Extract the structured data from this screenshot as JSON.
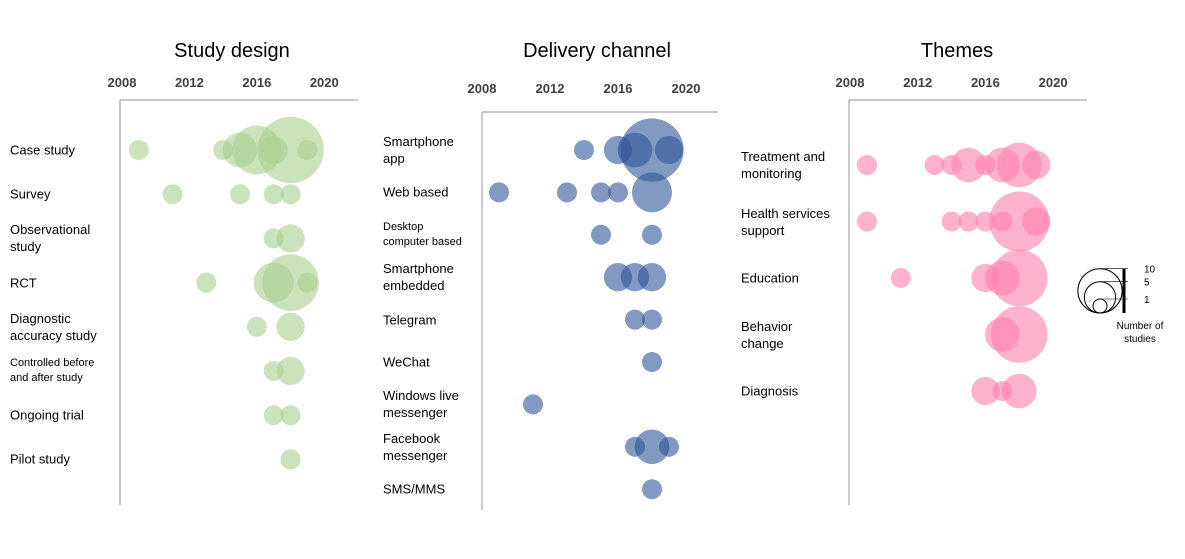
{
  "chart_data": [
    {
      "type": "bubble",
      "title": "Study design",
      "categories": [
        "Case study",
        "Survey",
        "Observational study",
        "RCT",
        "Diagnostic accuracy study",
        "Controlled before and after study",
        "Ongoing trial",
        "Pilot study"
      ],
      "xlim": [
        2008,
        2022
      ],
      "xticks": [
        2008,
        2012,
        2016,
        2020
      ],
      "color": "#a9d18e",
      "x": [
        2009,
        2014,
        2015,
        2016,
        2017,
        2018,
        2019,
        2011,
        2015,
        2017,
        2018,
        2017,
        2018,
        2013,
        2017,
        2018,
        2019,
        2016,
        2018,
        2017,
        2018,
        2017,
        2018,
        2018
      ],
      "y": [
        "Case study",
        "Case study",
        "Case study",
        "Case study",
        "Case study",
        "Case study",
        "Case study",
        "Survey",
        "Survey",
        "Survey",
        "Survey",
        "Observational study",
        "Observational study",
        "RCT",
        "RCT",
        "RCT",
        "RCT",
        "Diagnostic accuracy study",
        "Diagnostic accuracy study",
        "Controlled before and after study",
        "Controlled before and after study",
        "Ongoing trial",
        "Ongoing trial",
        "Pilot study"
      ],
      "sizes": [
        1,
        1,
        3,
        6,
        2,
        11,
        1,
        1,
        1,
        1,
        1,
        1,
        2,
        1,
        4,
        8,
        1,
        1,
        2,
        1,
        2,
        1,
        1,
        1
      ]
    },
    {
      "type": "bubble",
      "title": "Delivery channel",
      "categories": [
        "Smartphone app",
        "Web based",
        "Desktop computer based",
        "Smartphone embedded",
        "Telegram",
        "WeChat",
        "Windows live messenger",
        "Facebook messenger",
        "SMS/MMS"
      ],
      "xlim": [
        2008,
        2022
      ],
      "xticks": [
        2008,
        2012,
        2016,
        2020
      ],
      "color": "#2f5597",
      "x": [
        2014,
        2016,
        2017,
        2018,
        2019,
        2009,
        2013,
        2015,
        2016,
        2018,
        2015,
        2018,
        2016,
        2017,
        2018,
        2017,
        2018,
        2018,
        2011,
        2017,
        2018,
        2019,
        2018
      ],
      "y": [
        "Smartphone app",
        "Smartphone app",
        "Smartphone app",
        "Smartphone app",
        "Smartphone app",
        "Web based",
        "Web based",
        "Web based",
        "Web based",
        "Web based",
        "Desktop computer based",
        "Desktop computer based",
        "Smartphone embedded",
        "Smartphone embedded",
        "Smartphone embedded",
        "Telegram",
        "Telegram",
        "WeChat",
        "Windows live messenger",
        "Facebook messenger",
        "Facebook messenger",
        "Facebook messenger",
        "SMS/MMS"
      ],
      "sizes": [
        1,
        2,
        3,
        10,
        2,
        1,
        1,
        1,
        1,
        4,
        1,
        1,
        2,
        2,
        2,
        1,
        1,
        1,
        1,
        1,
        3,
        1,
        1
      ]
    },
    {
      "type": "bubble",
      "title": "Themes",
      "categories": [
        "Treatment and monitoring",
        "Health services support",
        "Education",
        "Behavior change",
        "Diagnosis"
      ],
      "xlim": [
        2008,
        2022
      ],
      "xticks": [
        2008,
        2012,
        2016,
        2020
      ],
      "color": "#ff7fab",
      "x": [
        2009,
        2013,
        2014,
        2015,
        2016,
        2017,
        2018,
        2019,
        2009,
        2014,
        2015,
        2016,
        2017,
        2018,
        2019,
        2011,
        2016,
        2017,
        2018,
        2017,
        2018,
        2016,
        2017,
        2018
      ],
      "y": [
        "Treatment and monitoring",
        "Treatment and monitoring",
        "Treatment and monitoring",
        "Treatment and monitoring",
        "Treatment and monitoring",
        "Treatment and monitoring",
        "Treatment and monitoring",
        "Treatment and monitoring",
        "Health services support",
        "Health services support",
        "Health services support",
        "Health services support",
        "Health services support",
        "Health services support",
        "Health services support",
        "Education",
        "Education",
        "Education",
        "Education",
        "Behavior change",
        "Behavior change",
        "Diagnosis",
        "Diagnosis",
        "Diagnosis"
      ],
      "sizes": [
        1,
        1,
        1,
        3,
        1,
        3,
        5,
        2,
        1,
        1,
        1,
        1,
        1,
        9,
        2,
        1,
        2,
        3,
        8,
        3,
        8,
        2,
        1,
        3
      ]
    }
  ],
  "size_legend": {
    "title": "Number of studies",
    "values": [
      10,
      5,
      1
    ]
  }
}
